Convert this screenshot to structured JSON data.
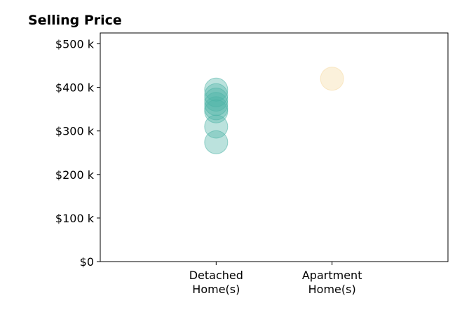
{
  "chart_data": {
    "type": "scatter",
    "title": "Selling Price",
    "xlabel": "",
    "ylabel": "",
    "categories": [
      "Detached\nHome(s)",
      "Apartment\nHome(s)"
    ],
    "ylim": [
      0,
      525000
    ],
    "yticks": [
      {
        "value": 0,
        "label": "$0"
      },
      {
        "value": 100000,
        "label": "$100 k"
      },
      {
        "value": 200000,
        "label": "$200 k"
      },
      {
        "value": 300000,
        "label": "$300 k"
      },
      {
        "value": 400000,
        "label": "$400 k"
      },
      {
        "value": 500000,
        "label": "$500 k"
      }
    ],
    "grid": false,
    "series": [
      {
        "category": "Detached\nHome(s)",
        "color": "#4db3a6",
        "values": [
          395000,
          382000,
          372000,
          362000,
          352000,
          345000,
          310000,
          274000
        ]
      },
      {
        "category": "Apartment\nHome(s)",
        "color": "#f5d9a0",
        "values": [
          420000
        ]
      }
    ]
  }
}
